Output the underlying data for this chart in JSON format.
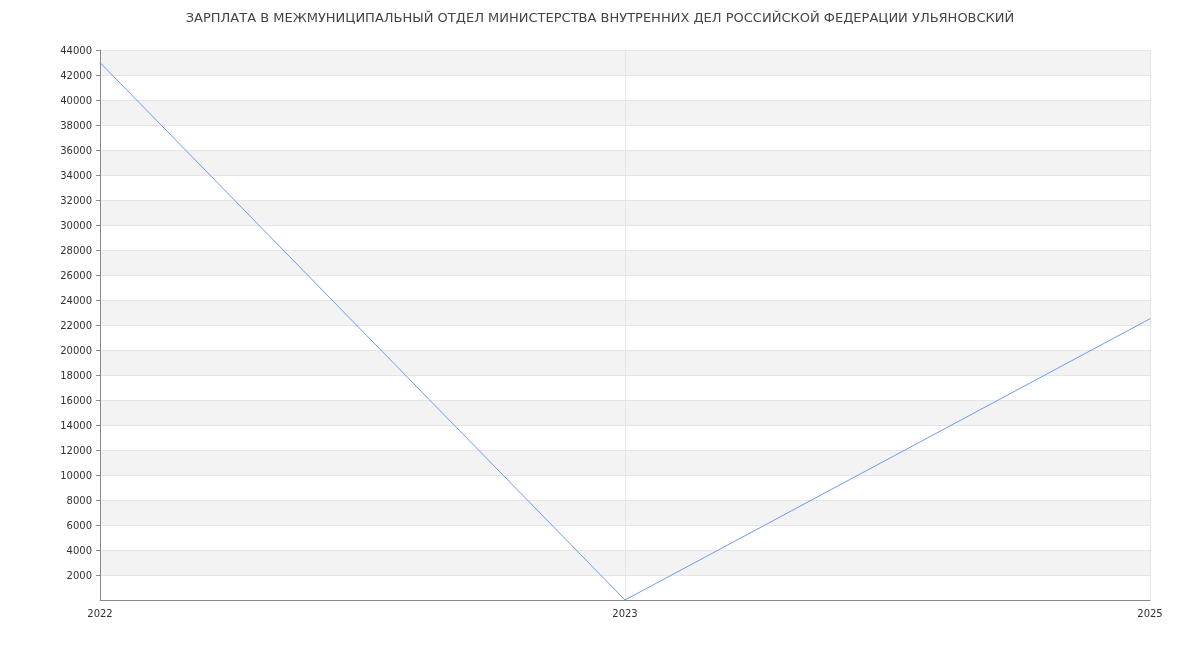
{
  "chart_data": {
    "type": "line",
    "title": "ЗАРПЛАТА В МЕЖМУНИЦИПАЛЬНЫЙ ОТДЕЛ МИНИСТЕРСТВА ВНУТРЕННИХ ДЕЛ РОССИЙСКОЙ ФЕДЕРАЦИИ УЛЬЯНОВСКИЙ",
    "categories": [
      "2022",
      "2023",
      "2025"
    ],
    "series": [
      {
        "color": "#6d9bf5",
        "values": [
          43000,
          0,
          22500
        ]
      }
    ],
    "ylim": [
      0,
      44000
    ],
    "yticks": [
      2000,
      4000,
      6000,
      8000,
      10000,
      12000,
      14000,
      16000,
      18000,
      20000,
      22000,
      24000,
      26000,
      28000,
      30000,
      32000,
      34000,
      36000,
      38000,
      40000,
      42000,
      44000
    ],
    "grid": true,
    "marker": "none",
    "line_style": "solid"
  }
}
